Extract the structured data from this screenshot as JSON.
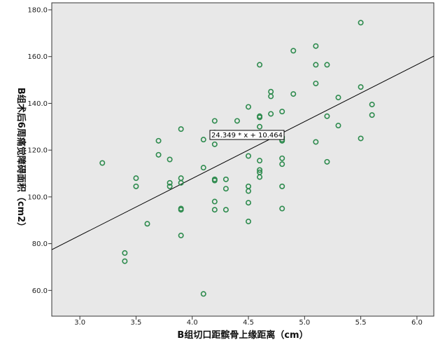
{
  "chart_data": {
    "type": "scatter",
    "xlabel": "B组切口距髌骨上缘距离（cm）",
    "ylabel": "B组术后6周痛觉障碍面积（cm2）",
    "xlim": [
      2.75,
      6.15
    ],
    "ylim": [
      49,
      183
    ],
    "xticks": [
      "3.0",
      "3.5",
      "4.0",
      "4.5",
      "5.0",
      "5.5",
      "6.0"
    ],
    "yticks": [
      "60.0",
      "80.0",
      "100.0",
      "120.0",
      "140.0",
      "160.0",
      "180.0"
    ],
    "grid": false,
    "fit_line": {
      "slope": 24.349,
      "intercept": 10.464,
      "label": "24.349 * x + 10.464"
    },
    "colors": {
      "background": "#e8e8e8",
      "marker": "#2e8b4e",
      "line": "#000000"
    },
    "points": [
      [
        3.2,
        114.5
      ],
      [
        3.4,
        76.0
      ],
      [
        3.4,
        72.5
      ],
      [
        3.5,
        108.0
      ],
      [
        3.5,
        104.5
      ],
      [
        3.6,
        88.5
      ],
      [
        3.7,
        124.0
      ],
      [
        3.7,
        118.0
      ],
      [
        3.8,
        116.0
      ],
      [
        3.8,
        106.0
      ],
      [
        3.8,
        104.5
      ],
      [
        3.9,
        129.0
      ],
      [
        3.9,
        108.0
      ],
      [
        3.9,
        106.0
      ],
      [
        3.9,
        95.0
      ],
      [
        3.9,
        94.5
      ],
      [
        3.9,
        83.5
      ],
      [
        4.1,
        124.5
      ],
      [
        4.1,
        112.5
      ],
      [
        4.1,
        58.5
      ],
      [
        4.2,
        132.5
      ],
      [
        4.2,
        127.5
      ],
      [
        4.2,
        127.0
      ],
      [
        4.2,
        122.5
      ],
      [
        4.2,
        107.5
      ],
      [
        4.2,
        107.0
      ],
      [
        4.2,
        98.0
      ],
      [
        4.2,
        94.5
      ],
      [
        4.3,
        107.5
      ],
      [
        4.3,
        103.5
      ],
      [
        4.3,
        94.5
      ],
      [
        4.4,
        132.5
      ],
      [
        4.5,
        138.5
      ],
      [
        4.5,
        117.5
      ],
      [
        4.5,
        104.5
      ],
      [
        4.5,
        102.5
      ],
      [
        4.5,
        97.5
      ],
      [
        4.5,
        89.5
      ],
      [
        4.6,
        156.5
      ],
      [
        4.6,
        134.5
      ],
      [
        4.6,
        134.0
      ],
      [
        4.6,
        130.0
      ],
      [
        4.6,
        126.5
      ],
      [
        4.6,
        115.5
      ],
      [
        4.6,
        111.5
      ],
      [
        4.6,
        110.5
      ],
      [
        4.6,
        108.5
      ],
      [
        4.7,
        145.0
      ],
      [
        4.7,
        143.0
      ],
      [
        4.7,
        135.5
      ],
      [
        4.8,
        136.5
      ],
      [
        4.8,
        125.5
      ],
      [
        4.8,
        124.5
      ],
      [
        4.8,
        124.0
      ],
      [
        4.8,
        116.5
      ],
      [
        4.8,
        114.0
      ],
      [
        4.8,
        104.5
      ],
      [
        4.8,
        95.0
      ],
      [
        4.9,
        162.5
      ],
      [
        4.9,
        144.0
      ],
      [
        5.1,
        164.5
      ],
      [
        5.1,
        156.5
      ],
      [
        5.1,
        148.5
      ],
      [
        5.1,
        123.5
      ],
      [
        5.2,
        156.5
      ],
      [
        5.2,
        134.5
      ],
      [
        5.2,
        115.0
      ],
      [
        5.3,
        142.5
      ],
      [
        5.3,
        130.5
      ],
      [
        5.5,
        174.5
      ],
      [
        5.5,
        147.0
      ],
      [
        5.5,
        125.0
      ],
      [
        5.6,
        139.5
      ],
      [
        5.6,
        135.0
      ]
    ]
  }
}
